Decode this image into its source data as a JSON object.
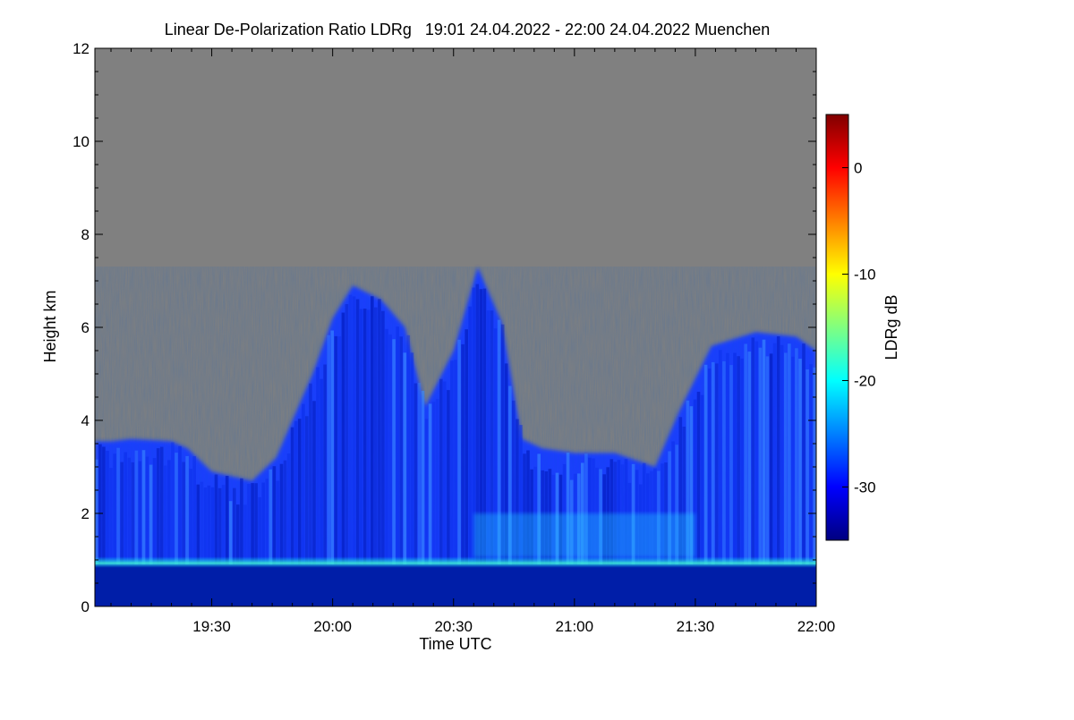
{
  "chart_data": {
    "type": "heatmap",
    "title": "Linear De-Polarization Ratio LDRg   19:01 24.04.2022 - 22:00 24.04.2022 Muenchen",
    "xlabel": "Time UTC",
    "ylabel": "Height km",
    "x_start": "19:01",
    "x_end": "22:00",
    "x_ticks": [
      "19:30",
      "20:00",
      "20:30",
      "21:00",
      "21:30",
      "22:00"
    ],
    "x_tick_minutes": [
      90,
      120,
      150,
      180,
      210,
      240
    ],
    "xlim_minutes": [
      61,
      240
    ],
    "ylim": [
      0,
      12
    ],
    "y_ticks": [
      0,
      2,
      4,
      6,
      8,
      10,
      12
    ],
    "y_tick_labels": [
      "0",
      "2",
      "4",
      "6",
      "8",
      "10",
      "12"
    ],
    "background_color": "#808080",
    "colorbar": {
      "label": "LDRg dB",
      "range": [
        -35,
        5
      ],
      "ticks": [
        0,
        -10,
        -20,
        -30
      ],
      "tick_labels": [
        "0",
        "-10",
        "-20",
        "-30"
      ],
      "colormap": [
        "#000080",
        "#0000ff",
        "#0080ff",
        "#00ffff",
        "#80ff80",
        "#ffff00",
        "#ff8000",
        "#ff0000",
        "#800000"
      ]
    },
    "features": {
      "boundary_layer_top_km": 0.95,
      "cloud_top_profile": [
        {
          "t": 61,
          "h": 3.55
        },
        {
          "t": 65,
          "h": 3.55
        },
        {
          "t": 70,
          "h": 3.6
        },
        {
          "t": 80,
          "h": 3.55
        },
        {
          "t": 84,
          "h": 3.4
        },
        {
          "t": 90,
          "h": 2.9
        },
        {
          "t": 100,
          "h": 2.7
        },
        {
          "t": 106,
          "h": 3.2
        },
        {
          "t": 110,
          "h": 4.0
        },
        {
          "t": 115,
          "h": 5.0
        },
        {
          "t": 120,
          "h": 6.2
        },
        {
          "t": 125,
          "h": 6.9
        },
        {
          "t": 132,
          "h": 6.6
        },
        {
          "t": 138,
          "h": 6.0
        },
        {
          "t": 143,
          "h": 4.3
        },
        {
          "t": 150,
          "h": 5.5
        },
        {
          "t": 156,
          "h": 7.3
        },
        {
          "t": 162,
          "h": 6.1
        },
        {
          "t": 167,
          "h": 3.6
        },
        {
          "t": 172,
          "h": 3.4
        },
        {
          "t": 180,
          "h": 3.3
        },
        {
          "t": 190,
          "h": 3.3
        },
        {
          "t": 200,
          "h": 3.0
        },
        {
          "t": 206,
          "h": 4.2
        },
        {
          "t": 214,
          "h": 5.6
        },
        {
          "t": 225,
          "h": 5.9
        },
        {
          "t": 235,
          "h": 5.8
        },
        {
          "t": 240,
          "h": 5.5
        }
      ]
    }
  }
}
